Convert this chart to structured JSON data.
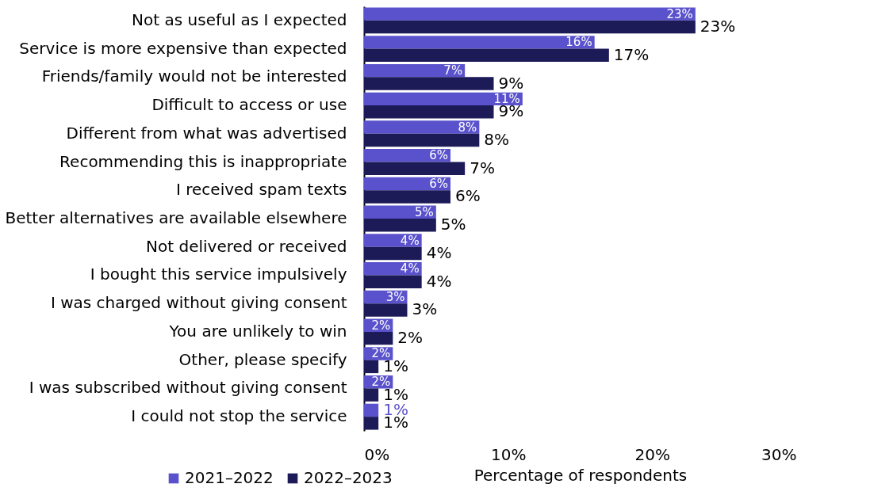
{
  "chart_data": {
    "type": "bar",
    "orientation": "horizontal",
    "xlabel": "Percentage of respondents",
    "categories": [
      "Not as useful as I expected",
      "Service is more expensive than expected",
      "Friends/family would not be interested",
      "Difficult to access or use",
      "Different from what was advertised",
      "Recommending this is inappropriate",
      "I received spam texts",
      "Better alternatives are available elsewhere",
      "Not delivered or received",
      "I bought this service impulsively",
      "I was charged without giving consent",
      "You are unlikely to win",
      "Other, please specify",
      "I was subscribed without giving consent",
      "I could not stop the service"
    ],
    "series": [
      {
        "name": "2021–2022",
        "color": "#5a52cc",
        "values": [
          23,
          16,
          7,
          11,
          8,
          6,
          6,
          5,
          4,
          4,
          3,
          2,
          2,
          2,
          1
        ],
        "value_labels": [
          "23%",
          "16%",
          "7%",
          "11%",
          "8%",
          "6%",
          "6%",
          "5%",
          "4%",
          "4%",
          "3%",
          "2%",
          "2%",
          "2%",
          "1%"
        ]
      },
      {
        "name": "2022–2023",
        "color": "#1c1a57",
        "values": [
          23,
          17,
          9,
          9,
          8,
          7,
          6,
          5,
          4,
          4,
          3,
          2,
          1,
          1,
          1
        ],
        "value_labels": [
          "23%",
          "17%",
          "9%",
          "9%",
          "8%",
          "7%",
          "6%",
          "5%",
          "4%",
          "4%",
          "3%",
          "2%",
          "1%",
          "1%",
          "1%"
        ]
      }
    ],
    "xlim": [
      0,
      30
    ],
    "xticks": [
      {
        "value": 0,
        "label": "0%"
      },
      {
        "value": 10,
        "label": "10%"
      },
      {
        "value": 20,
        "label": "20%"
      },
      {
        "value": 30,
        "label": "30%"
      }
    ],
    "legend": "bottom left",
    "grid": false
  }
}
